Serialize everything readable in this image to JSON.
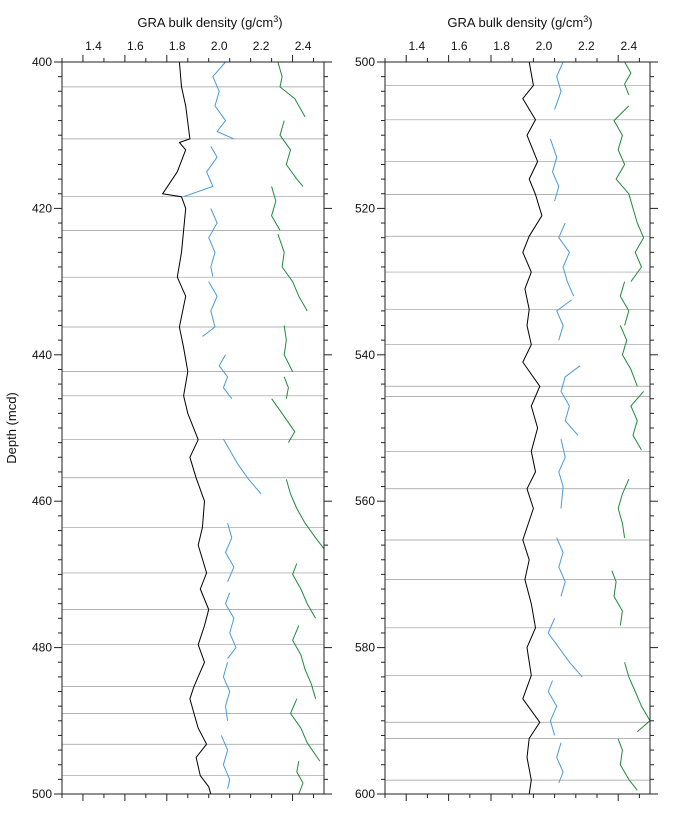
{
  "figure": {
    "ylabel": "Depth (mcd)"
  },
  "chart_data": [
    {
      "type": "line",
      "title": "GRA bulk density (g/cm3)",
      "title_main": "GRA bulk density (g/cm",
      "title_sup": "3",
      "title_close": ")",
      "xlabel": "GRA bulk density (g/cm3)",
      "ylabel": "Depth (mcd)",
      "xlim": [
        1.25,
        2.5
      ],
      "ylim": [
        400,
        500
      ],
      "y_inverted": true,
      "x_ticks": [
        "1.4",
        "1.6",
        "1.8",
        "2.0",
        "2.2",
        "2.4"
      ],
      "y_ticks": [
        "400",
        "420",
        "440",
        "460",
        "480",
        "500"
      ],
      "section_boundaries": [
        403.4,
        410.5,
        418.4,
        423.0,
        429.4,
        436.2,
        442.3,
        445.6,
        451.6,
        456.8,
        463.6,
        469.8,
        474.8,
        479.6,
        485.3,
        489.0,
        493.2,
        497.5
      ],
      "series": [
        {
          "color": "#000000",
          "offset": 0.0,
          "segments": [
            {
              "y": [
                400,
                403.4,
                406,
                410.5,
                411.0,
                412,
                415,
                418.0,
                418.4,
                420,
                423,
                426,
                429.4,
                432,
                436.2,
                439,
                442.3,
                445.6,
                448,
                451.6,
                454,
                456.8,
                460,
                463.6,
                466,
                469.8,
                472,
                474.8,
                477,
                479.6,
                482,
                485.3,
                487,
                489,
                491,
                493.2,
                495,
                497.5,
                499,
                500
              ],
              "x": [
                1.81,
                1.82,
                1.84,
                1.86,
                1.81,
                1.84,
                1.8,
                1.73,
                1.82,
                1.84,
                1.83,
                1.82,
                1.8,
                1.84,
                1.81,
                1.83,
                1.85,
                1.83,
                1.85,
                1.9,
                1.86,
                1.89,
                1.93,
                1.92,
                1.9,
                1.94,
                1.91,
                1.95,
                1.93,
                1.9,
                1.93,
                1.88,
                1.86,
                1.88,
                1.9,
                1.94,
                1.89,
                1.91,
                1.95,
                1.96
              ]
            }
          ]
        },
        {
          "color": "#4a9bd8",
          "offset": 0.0,
          "segments": [
            {
              "y": [
                400,
                402,
                404,
                406,
                408,
                409.5,
                410.5
              ],
              "x": [
                2.03,
                1.97,
                2.0,
                1.98,
                2.03,
                1.99,
                2.07
              ]
            },
            {
              "y": [
                411.5,
                413,
                415,
                417,
                418.4
              ],
              "x": [
                1.96,
                1.99,
                1.94,
                1.97,
                1.83
              ]
            },
            {
              "y": [
                420,
                422,
                424,
                426,
                428,
                429.3
              ],
              "x": [
                1.96,
                1.99,
                1.95,
                1.98,
                1.96,
                1.97
              ]
            },
            {
              "y": [
                430,
                432,
                434,
                436.2,
                437.5
              ],
              "x": [
                1.95,
                1.99,
                1.96,
                1.98,
                1.92
              ]
            },
            {
              "y": [
                440,
                441.5,
                443,
                444.5,
                446
              ],
              "x": [
                2.03,
                2.0,
                2.04,
                2.02,
                2.06
              ]
            },
            {
              "y": [
                451.5,
                453,
                455,
                457,
                459
              ],
              "x": [
                2.02,
                2.05,
                2.09,
                2.14,
                2.2
              ]
            },
            {
              "y": [
                463,
                465,
                467,
                469,
                471
              ],
              "x": [
                2.04,
                2.06,
                2.03,
                2.07,
                2.04
              ]
            },
            {
              "y": [
                472.5,
                474,
                476,
                478,
                480,
                481.5
              ],
              "x": [
                2.05,
                2.03,
                2.07,
                2.05,
                2.08,
                2.04
              ]
            },
            {
              "y": [
                482,
                484,
                486,
                488,
                490
              ],
              "x": [
                2.04,
                2.02,
                2.05,
                2.03,
                2.04
              ]
            },
            {
              "y": [
                492,
                494,
                496,
                498,
                499.3
              ],
              "x": [
                2.01,
                2.04,
                2.02,
                2.05,
                2.04
              ]
            }
          ]
        },
        {
          "color": "#1e8a3c",
          "offset": 0.0,
          "segments": [
            {
              "y": [
                400,
                402,
                403.4,
                405,
                407.5
              ],
              "x": [
                2.28,
                2.3,
                2.29,
                2.36,
                2.41
              ]
            },
            {
              "y": [
                408,
                410,
                412,
                414,
                416,
                417
              ],
              "x": [
                2.31,
                2.29,
                2.34,
                2.32,
                2.37,
                2.4
              ]
            },
            {
              "y": [
                417,
                419,
                421,
                423
              ],
              "x": [
                2.25,
                2.27,
                2.25,
                2.29
              ]
            },
            {
              "y": [
                423.5,
                426,
                428,
                430,
                432,
                434
              ],
              "x": [
                2.28,
                2.31,
                2.3,
                2.35,
                2.38,
                2.42
              ]
            },
            {
              "y": [
                436,
                438,
                440,
                442.3
              ],
              "x": [
                2.31,
                2.32,
                2.31,
                2.35
              ]
            },
            {
              "y": [
                443,
                444.5,
                446
              ],
              "x": [
                2.31,
                2.33,
                2.32
              ]
            },
            {
              "y": [
                446,
                448,
                450.5,
                452
              ],
              "x": [
                2.25,
                2.3,
                2.36,
                2.33
              ]
            },
            {
              "y": [
                457,
                459,
                461,
                463,
                465,
                466.5
              ],
              "x": [
                2.32,
                2.34,
                2.37,
                2.41,
                2.46,
                2.5
              ]
            },
            {
              "y": [
                468.5,
                470,
                472,
                474,
                476
              ],
              "x": [
                2.37,
                2.35,
                2.39,
                2.42,
                2.46
              ]
            },
            {
              "y": [
                477,
                479,
                481,
                483,
                485,
                487
              ],
              "x": [
                2.38,
                2.35,
                2.39,
                2.41,
                2.44,
                2.46
              ]
            },
            {
              "y": [
                487,
                489,
                491,
                493,
                495.5
              ],
              "x": [
                2.37,
                2.34,
                2.39,
                2.42,
                2.48
              ]
            },
            {
              "y": [
                495.5,
                497,
                498.5,
                500
              ],
              "x": [
                2.38,
                2.37,
                2.4,
                2.38
              ]
            }
          ]
        }
      ]
    },
    {
      "type": "line",
      "title": "GRA bulk density (g/cm3)",
      "title_main": "GRA bulk density (g/cm",
      "title_sup": "3",
      "title_close": ")",
      "xlabel": "GRA bulk density (g/cm3)",
      "xlim": [
        1.25,
        2.5
      ],
      "ylim": [
        500,
        600
      ],
      "y_inverted": true,
      "x_ticks": [
        "1.4",
        "1.6",
        "1.8",
        "2.0",
        "2.2",
        "2.4"
      ],
      "y_ticks": [
        "500",
        "520",
        "540",
        "560",
        "580",
        "600"
      ],
      "section_boundaries": [
        503.2,
        507.9,
        513.6,
        518.1,
        523.8,
        528.7,
        533.8,
        538.6,
        544.3,
        545.7,
        553.2,
        558.3,
        565.3,
        570.7,
        577.3,
        583.8,
        590.2,
        592.4,
        598.1
      ],
      "series": [
        {
          "color": "#000000",
          "offset": 0.0,
          "segments": [
            {
              "y": [
                500,
                503.2,
                505,
                507.9,
                510,
                513.6,
                516,
                518.1,
                521,
                523.8,
                526,
                528.7,
                531,
                533.8,
                536,
                538.6,
                541,
                544.3,
                547,
                550,
                553.2,
                556,
                558.3,
                561,
                565.3,
                568,
                570.7,
                574,
                577.3,
                580,
                583.8,
                587,
                590.2,
                592.4,
                595,
                598.1,
                600
              ],
              "x": [
                1.93,
                1.95,
                1.9,
                1.96,
                1.92,
                1.97,
                1.93,
                1.96,
                1.99,
                1.93,
                1.9,
                1.94,
                1.91,
                1.93,
                1.92,
                1.94,
                1.9,
                1.98,
                1.94,
                1.97,
                1.94,
                1.96,
                1.92,
                1.95,
                1.9,
                1.93,
                1.91,
                1.94,
                1.96,
                1.92,
                1.94,
                1.9,
                1.98,
                1.93,
                1.92,
                1.94,
                1.93
              ]
            }
          ]
        },
        {
          "color": "#4a9bd8",
          "offset": 0.0,
          "segments": [
            {
              "y": [
                500,
                502,
                504,
                506.5
              ],
              "x": [
                2.09,
                2.06,
                2.08,
                2.05
              ]
            },
            {
              "y": [
                510.5,
                513,
                515,
                517,
                519
              ],
              "x": [
                2.03,
                2.06,
                2.04,
                2.07,
                2.05
              ]
            },
            {
              "y": [
                522,
                524,
                526,
                528,
                530,
                532
              ],
              "x": [
                2.1,
                2.07,
                2.12,
                2.09,
                2.11,
                2.14
              ]
            },
            {
              "y": [
                532.5,
                534,
                536,
                538
              ],
              "x": [
                2.13,
                2.06,
                2.09,
                2.07
              ]
            },
            {
              "y": [
                541.5,
                543,
                545,
                547,
                549,
                551
              ],
              "x": [
                2.17,
                2.1,
                2.08,
                2.12,
                2.1,
                2.16
              ]
            },
            {
              "y": [
                551.5,
                554,
                556,
                558,
                561
              ],
              "x": [
                2.08,
                2.1,
                2.07,
                2.09,
                2.08
              ]
            },
            {
              "y": [
                565,
                567,
                569,
                571,
                573
              ],
              "x": [
                2.06,
                2.09,
                2.07,
                2.1,
                2.08
              ]
            },
            {
              "y": [
                576,
                578,
                580,
                582,
                584
              ],
              "x": [
                2.05,
                2.02,
                2.07,
                2.12,
                2.18
              ]
            },
            {
              "y": [
                584.5,
                586,
                588,
                590,
                592
              ],
              "x": [
                2.04,
                2.02,
                2.06,
                2.03,
                2.05
              ]
            },
            {
              "y": [
                593,
                595,
                597,
                598.5
              ],
              "x": [
                2.08,
                2.06,
                2.09,
                2.07
              ]
            }
          ]
        },
        {
          "color": "#1e8a3c",
          "offset": 0.0,
          "segments": [
            {
              "y": [
                500,
                501.5,
                503,
                504.5
              ],
              "x": [
                2.38,
                2.41,
                2.38,
                2.4
              ]
            },
            {
              "y": [
                506,
                508,
                510,
                512,
                514,
                516,
                518
              ],
              "x": [
                2.4,
                2.33,
                2.37,
                2.35,
                2.38,
                2.34,
                2.4
              ]
            },
            {
              "y": [
                518,
                520,
                522,
                524,
                526,
                528,
                530
              ],
              "x": [
                2.4,
                2.42,
                2.44,
                2.47,
                2.43,
                2.46,
                2.41
              ]
            },
            {
              "y": [
                530,
                532,
                534,
                536
              ],
              "x": [
                2.38,
                2.36,
                2.4,
                2.38
              ]
            },
            {
              "y": [
                536,
                538,
                540,
                542,
                544.3
              ],
              "x": [
                2.36,
                2.39,
                2.37,
                2.41,
                2.44
              ]
            },
            {
              "y": [
                545,
                547,
                549,
                551,
                553
              ],
              "x": [
                2.47,
                2.41,
                2.44,
                2.42,
                2.46
              ]
            },
            {
              "y": [
                557,
                559,
                561,
                563,
                565
              ],
              "x": [
                2.4,
                2.37,
                2.35,
                2.37,
                2.38
              ]
            },
            {
              "y": [
                569.5,
                571,
                573,
                575,
                577
              ],
              "x": [
                2.32,
                2.34,
                2.33,
                2.37,
                2.36
              ]
            },
            {
              "y": [
                582,
                584,
                586,
                588,
                590,
                591.5
              ],
              "x": [
                2.38,
                2.4,
                2.43,
                2.46,
                2.5,
                2.44
              ]
            },
            {
              "y": [
                592.5,
                594,
                596,
                598,
                599.5
              ],
              "x": [
                2.35,
                2.37,
                2.36,
                2.4,
                2.44
              ]
            }
          ]
        }
      ]
    }
  ]
}
